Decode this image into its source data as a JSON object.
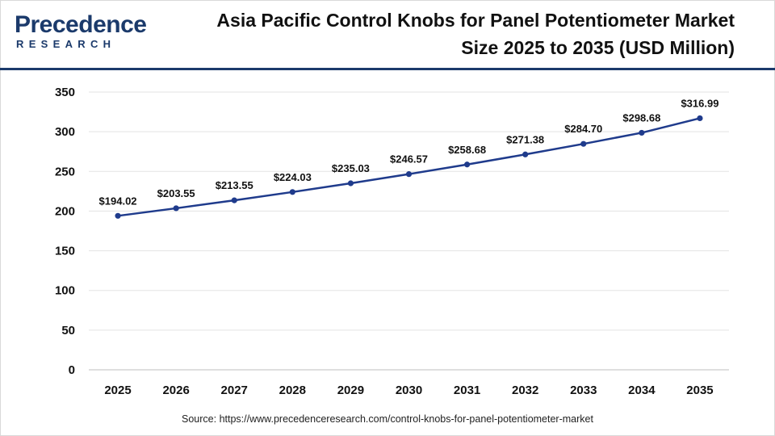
{
  "brand": {
    "name": "Precedence",
    "sub": "RESEARCH"
  },
  "header": {
    "title_line1": "Asia Pacific Control Knobs for Panel Potentiometer Market",
    "title_line2": "Size 2025 to 2035 (USD Million)"
  },
  "footer": {
    "source": "Source: https://www.precedenceresearch.com/control-knobs-for-panel-potentiometer-market"
  },
  "colors": {
    "line": "#1f3b8c",
    "brand": "#1b3a6b",
    "grid": "#e3e3e3"
  },
  "chart_data": {
    "type": "line",
    "title": "Asia Pacific Control Knobs for Panel Potentiometer Market Size 2025 to 2035 (USD Million)",
    "xlabel": "",
    "ylabel": "",
    "ylim": [
      0,
      350
    ],
    "yticks": [
      0,
      50,
      100,
      150,
      200,
      250,
      300,
      350
    ],
    "grid": true,
    "legend": "none",
    "categories": [
      "2025",
      "2026",
      "2027",
      "2028",
      "2029",
      "2030",
      "2031",
      "2032",
      "2033",
      "2034",
      "2035"
    ],
    "series": [
      {
        "values": [
          194.02,
          203.55,
          213.55,
          224.03,
          235.03,
          246.57,
          258.68,
          271.38,
          284.7,
          298.68,
          316.99
        ],
        "labels": [
          "$194.02",
          "$203.55",
          "$213.55",
          "$224.03",
          "$235.03",
          "$246.57",
          "$258.68",
          "$271.38",
          "$284.70",
          "$298.68",
          "$316.99"
        ]
      }
    ]
  }
}
